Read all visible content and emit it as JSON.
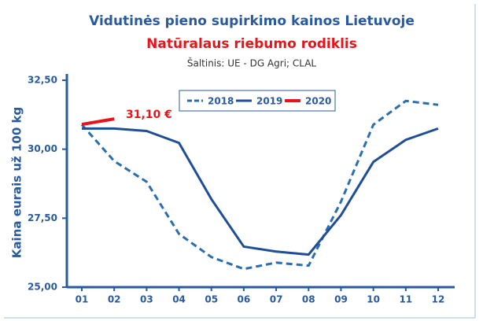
{
  "chart_data": {
    "type": "line",
    "title": "Vidutinės pieno supirkimo kainos Lietuvoje",
    "subtitle": "Natūralaus riebumo rodiklis",
    "source": "Šaltinis: UE - DG Agri; CLAL",
    "y_label": "Kaina eurais už 100 kg",
    "annotation": "31,10 €",
    "categories": [
      "01",
      "02",
      "03",
      "04",
      "05",
      "06",
      "07",
      "08",
      "09",
      "10",
      "11",
      "12"
    ],
    "series": [
      {
        "name": "2018",
        "color": "#2a6db0",
        "dashed": true,
        "values": [
          30.89,
          29.57,
          28.82,
          26.93,
          26.09,
          25.66,
          25.89,
          25.78,
          28.1,
          30.89,
          31.75,
          31.61
        ]
      },
      {
        "name": "2019",
        "color": "#1f4e96",
        "dashed": false,
        "values": [
          30.75,
          30.75,
          30.66,
          30.23,
          28.19,
          26.47,
          26.29,
          26.18,
          27.61,
          29.54,
          30.34,
          30.75
        ]
      },
      {
        "name": "2020",
        "color": "#e8141b",
        "dashed": false,
        "values": [
          30.9,
          31.1,
          null,
          null,
          null,
          null,
          null,
          null,
          null,
          null,
          null,
          null
        ]
      }
    ],
    "ylim": [
      25,
      32.5
    ],
    "yticks": [
      {
        "value": 25,
        "label": "25,00"
      },
      {
        "value": 27.5,
        "label": "27,50"
      },
      {
        "value": 30,
        "label": "30,00"
      },
      {
        "value": 32.5,
        "label": "32,50"
      }
    ],
    "grid": false,
    "legend": "top"
  }
}
